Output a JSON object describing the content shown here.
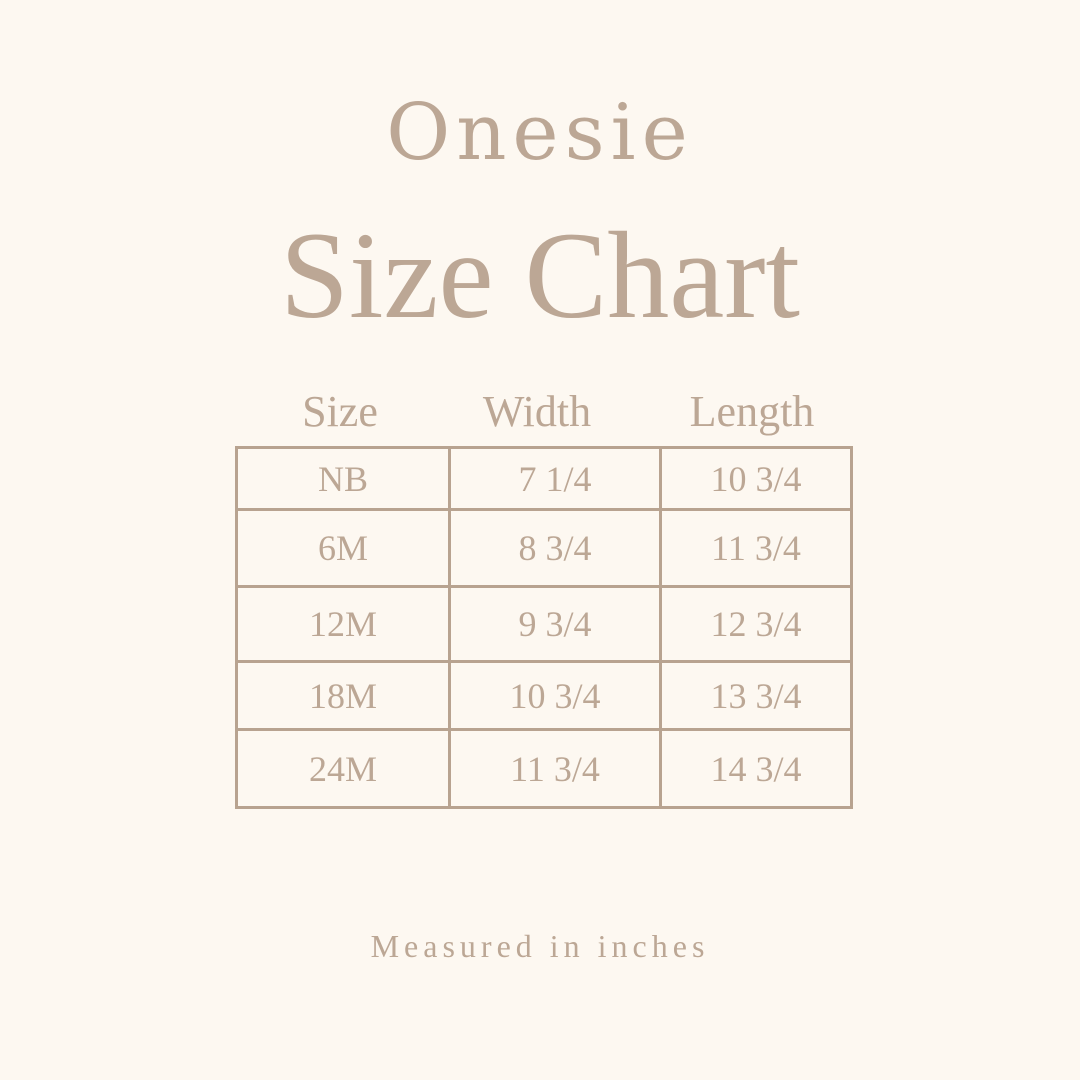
{
  "title_line1": "Onesie",
  "title_line2": "Size Chart",
  "columns": [
    "Size",
    "Width",
    "Length"
  ],
  "rows": [
    [
      "NB",
      "7 1/4",
      "10 3/4"
    ],
    [
      "6M",
      "8 3/4",
      "11 3/4"
    ],
    [
      "12M",
      "9 3/4",
      "12 3/4"
    ],
    [
      "18M",
      "10 3/4",
      "13 3/4"
    ],
    [
      "24M",
      "11 3/4",
      "14 3/4"
    ]
  ],
  "footnote": "Measured in inches",
  "colors": {
    "background": "#fdf8f1",
    "text": "#bca795",
    "lines": "#b8a390"
  }
}
